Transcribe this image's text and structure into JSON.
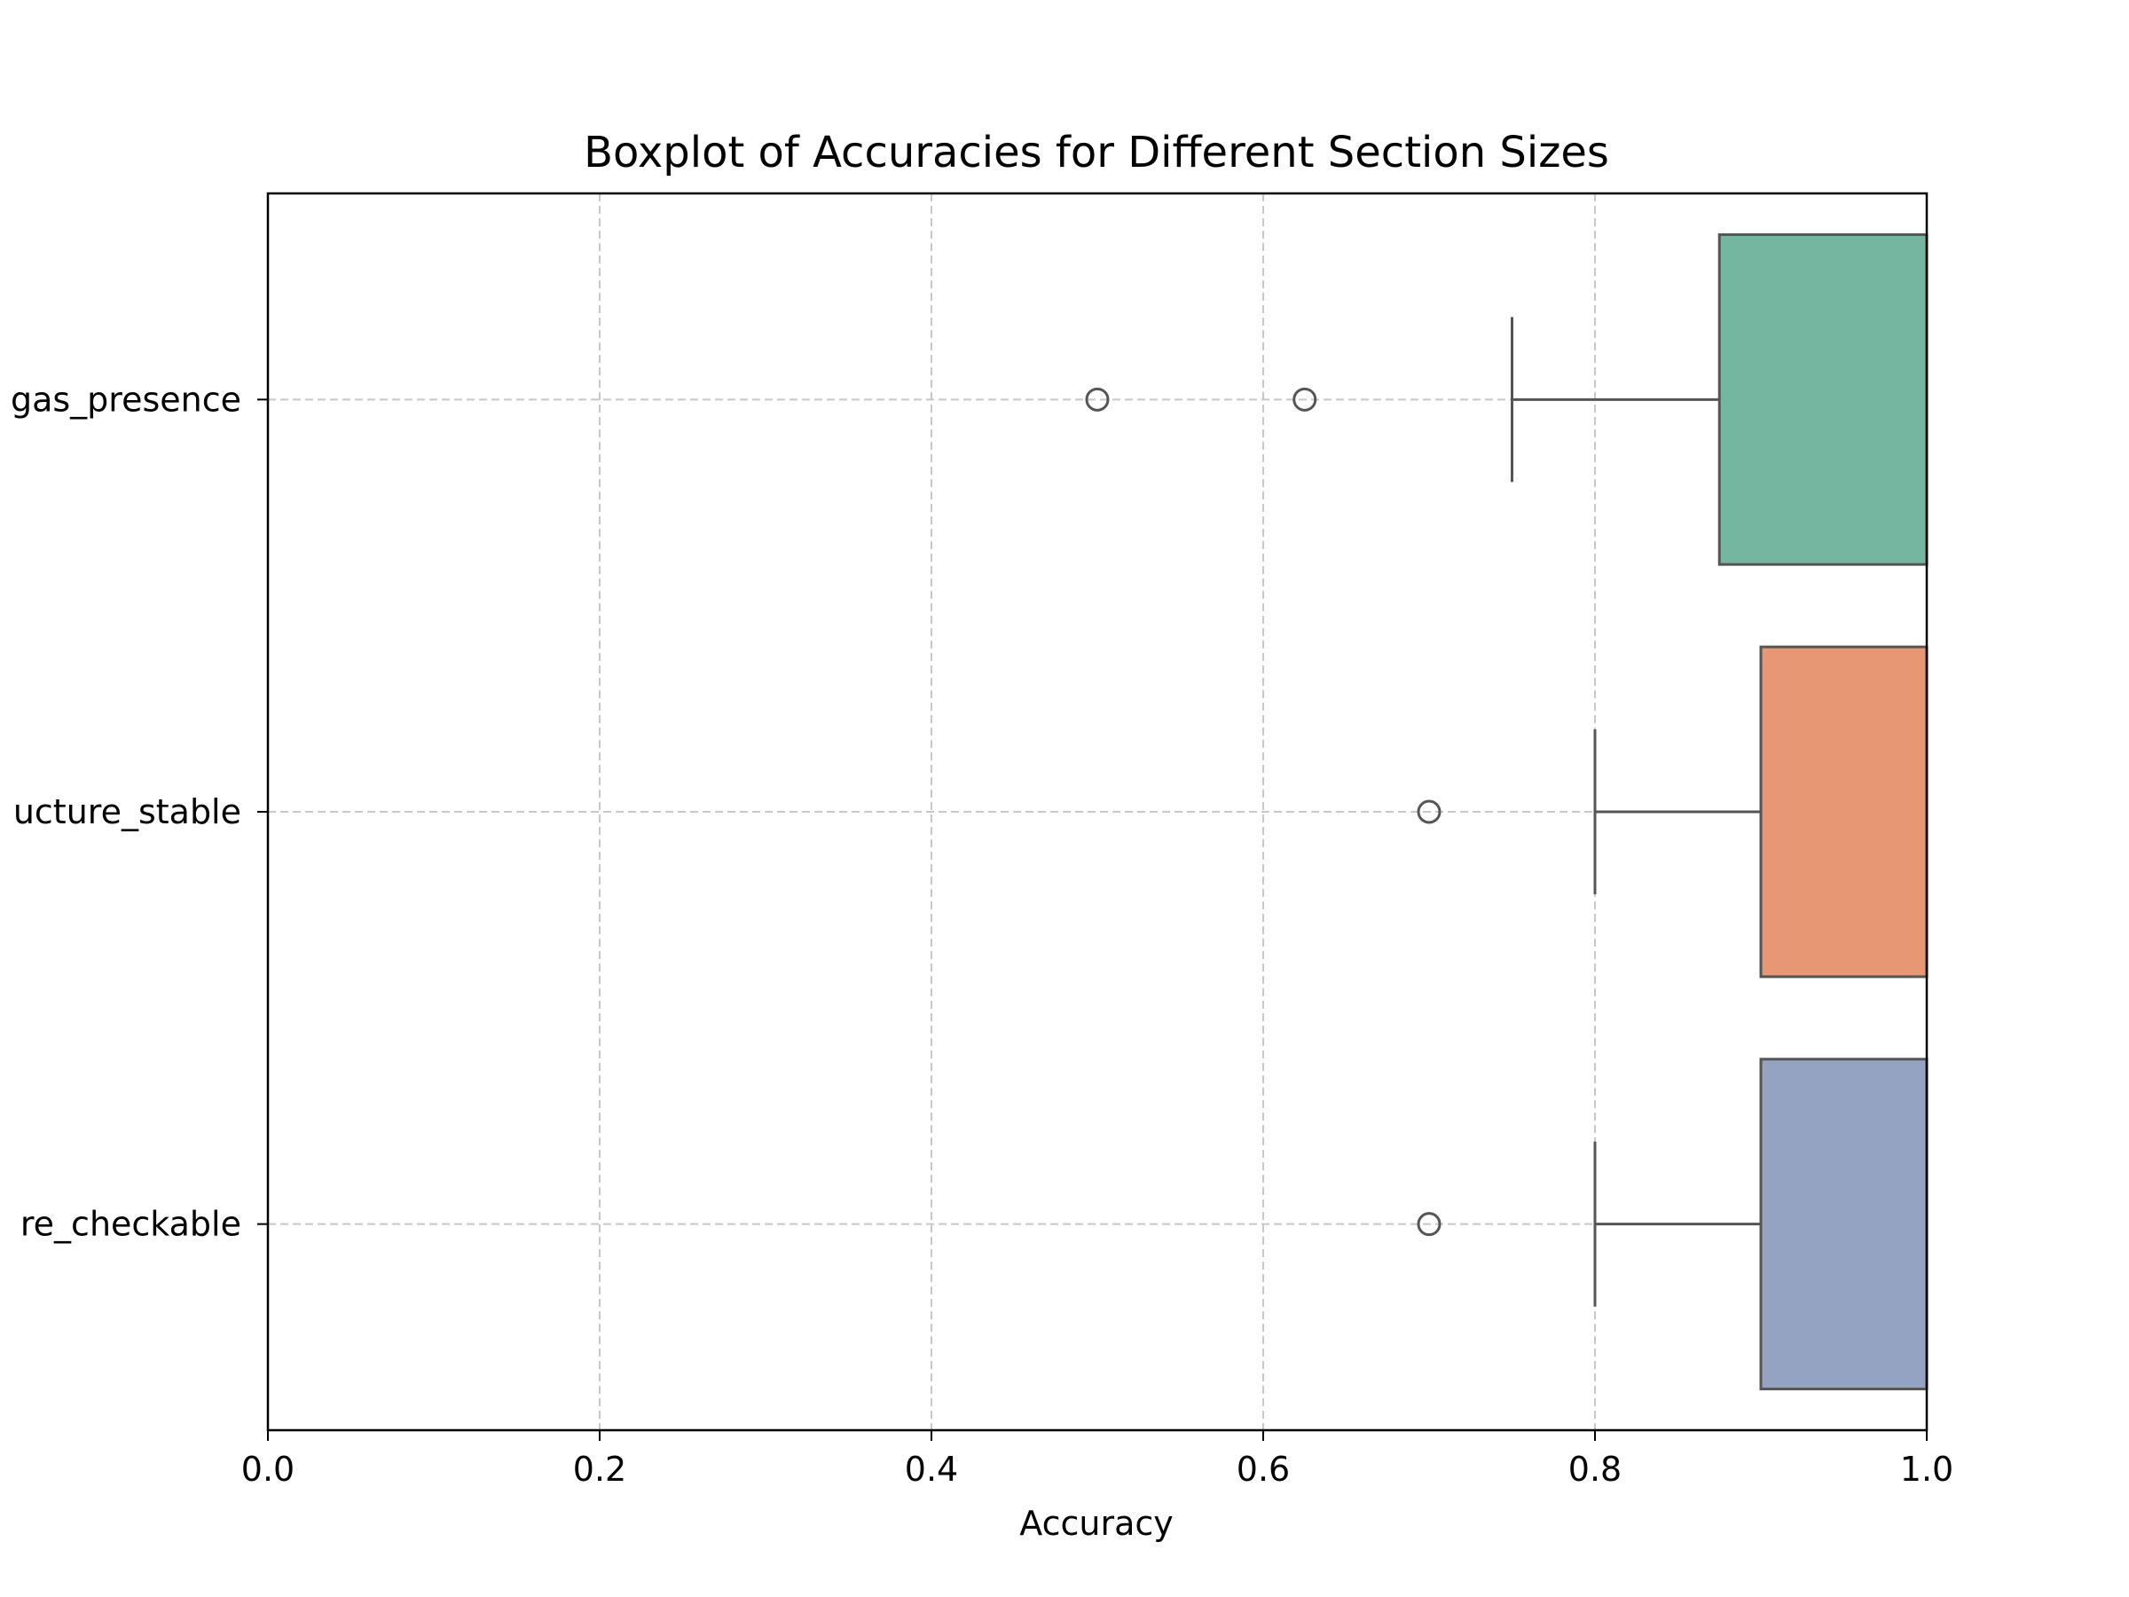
{
  "chart_data": {
    "type": "boxplot",
    "title": "Boxplot of Accuracies for Different Section Sizes",
    "xlabel": "Accuracy",
    "ylabel": "",
    "orientation": "horizontal",
    "xlim": [
      0.0,
      1.0
    ],
    "x_ticks": [
      {
        "value": 0.0,
        "label": "0.0"
      },
      {
        "value": 0.2,
        "label": "0.2"
      },
      {
        "value": 0.4,
        "label": "0.4"
      },
      {
        "value": 0.6,
        "label": "0.6"
      },
      {
        "value": 0.8,
        "label": "0.8"
      },
      {
        "value": 1.0,
        "label": "1.0"
      }
    ],
    "grid": true,
    "series": [
      {
        "category": "gas_presence",
        "label": "gas_presence",
        "whisker_low": 0.75,
        "q1": 0.875,
        "median": 1.0,
        "q3": 1.0,
        "whisker_high": 1.0,
        "outliers": [
          0.5,
          0.625
        ],
        "color": "#74b6a0"
      },
      {
        "category": "structure_stable",
        "label": "ucture_stable",
        "whisker_low": 0.8,
        "q1": 0.9,
        "median": 1.0,
        "q3": 1.0,
        "whisker_high": 1.0,
        "outliers": [
          0.7
        ],
        "color": "#e89775"
      },
      {
        "category": "structure_checkable",
        "label": "re_checkable",
        "whisker_low": 0.8,
        "q1": 0.9,
        "median": 1.0,
        "q3": 1.0,
        "whisker_high": 1.0,
        "outliers": [
          0.7
        ],
        "color": "#94a3c2"
      }
    ],
    "line_color": "#555555"
  }
}
